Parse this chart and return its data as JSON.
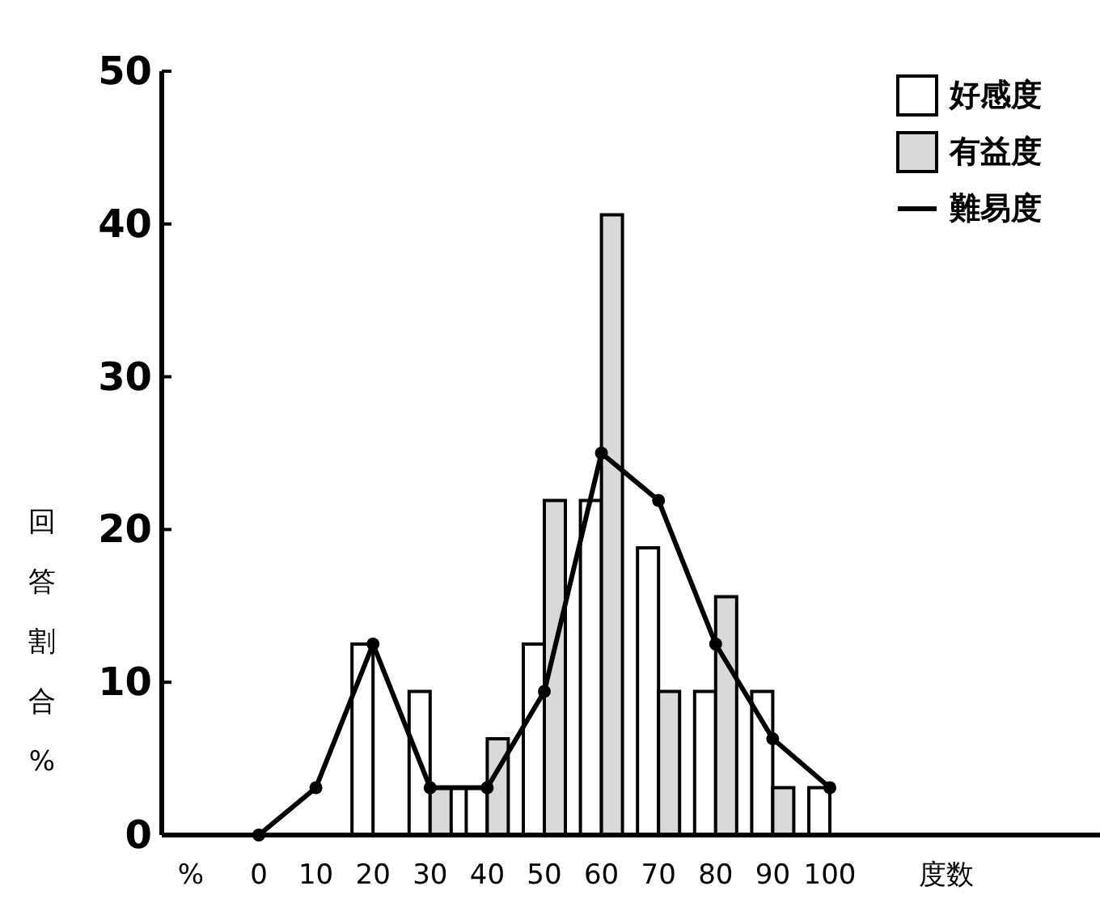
{
  "chart_data": {
    "type": "bar",
    "categories": [
      "0",
      "10",
      "20",
      "30",
      "40",
      "50",
      "60",
      "70",
      "80",
      "90",
      "100"
    ],
    "series": [
      {
        "name": "好感度",
        "color": "#ffffff",
        "values": [
          0,
          0,
          12.5,
          9.4,
          3.1,
          12.5,
          21.9,
          18.8,
          9.4,
          9.4,
          3.1
        ]
      },
      {
        "name": "有益度",
        "color": "#d9d9d9",
        "values": [
          0,
          0,
          0,
          3.1,
          6.3,
          21.9,
          40.6,
          9.4,
          15.6,
          3.1,
          0
        ]
      },
      {
        "name": "難易度",
        "type": "line",
        "color": "#000000",
        "values": [
          0,
          3.1,
          12.5,
          3.1,
          3.1,
          9.4,
          25,
          21.9,
          12.5,
          6.3,
          3.1
        ]
      }
    ],
    "xlabel": "度数",
    "ylabel": "回答割合%",
    "annotations": [
      "%"
    ],
    "ylim": [
      0,
      50
    ],
    "yticks": [
      0,
      10,
      20,
      30,
      40,
      50
    ],
    "grid": false,
    "legend": "top right",
    "marker": "circle",
    "line_style": "solid"
  }
}
